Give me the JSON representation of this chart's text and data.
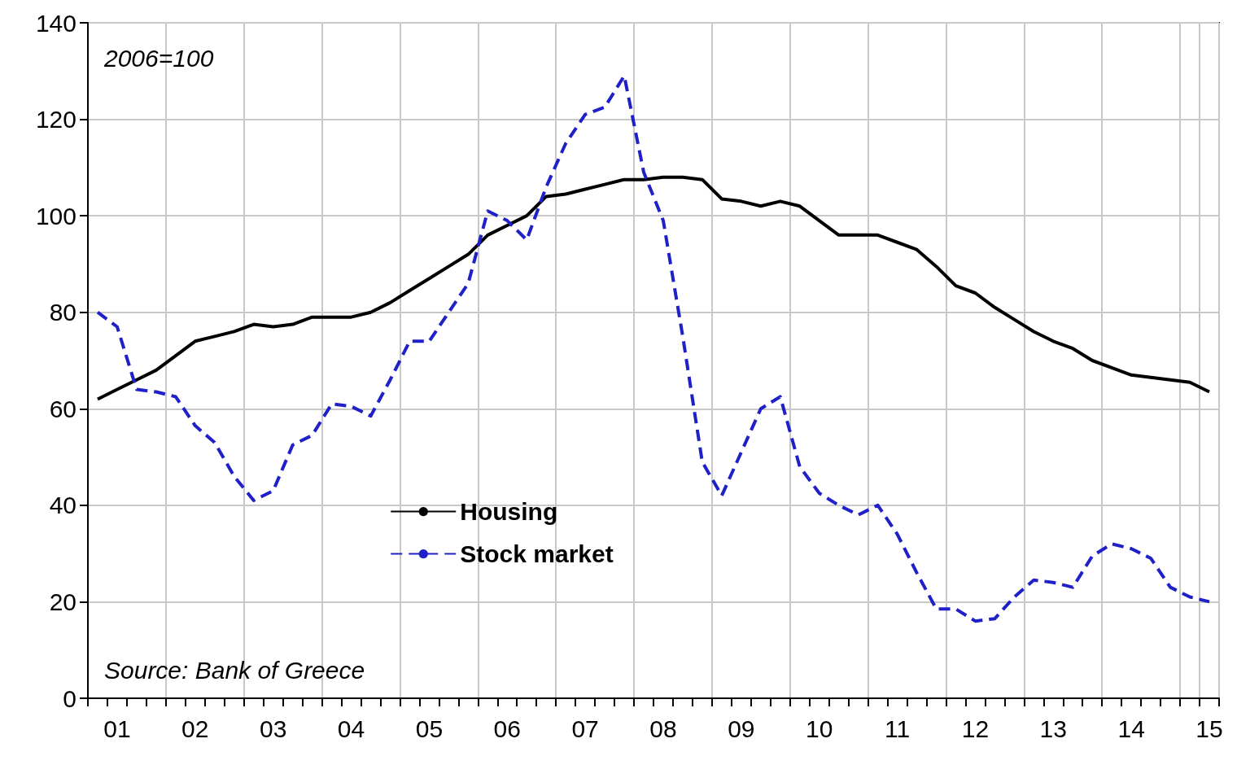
{
  "chart_data": {
    "type": "line",
    "categories": [
      null,
      "01",
      null,
      null,
      null,
      "02",
      null,
      null,
      null,
      "03",
      null,
      null,
      null,
      "04",
      null,
      null,
      null,
      "05",
      null,
      null,
      null,
      "06",
      null,
      null,
      null,
      "07",
      null,
      null,
      null,
      "08",
      null,
      null,
      null,
      "09",
      null,
      null,
      null,
      "10",
      null,
      null,
      null,
      "11",
      null,
      null,
      null,
      "12",
      null,
      null,
      null,
      "13",
      null,
      null,
      null,
      "14",
      null,
      null,
      null,
      "15"
    ],
    "series": [
      {
        "name": "Housing",
        "color": "#000000",
        "line_style": "solid",
        "values": [
          62,
          64,
          66,
          68,
          71,
          74,
          75,
          76,
          77.5,
          77,
          77.5,
          79,
          79,
          79,
          80,
          82,
          84.5,
          87,
          89.5,
          92,
          96,
          98,
          100,
          104,
          104.5,
          105.5,
          106.5,
          107.5,
          107.5,
          108,
          108,
          107.5,
          103.5,
          103,
          102,
          103,
          102,
          99,
          96,
          96,
          96,
          94.5,
          93,
          89.5,
          85.5,
          84,
          81,
          78.5,
          76,
          74,
          72.5,
          70,
          68.5,
          67,
          66.5,
          66,
          65.5,
          63.5
        ]
      },
      {
        "name": "Stock market",
        "color": "#2020c8",
        "line_style": "dashed",
        "values": [
          80,
          77,
          64,
          63.5,
          62.5,
          56.5,
          53,
          46,
          41,
          43,
          52.5,
          54.5,
          61,
          60.5,
          58.5,
          66,
          74,
          74,
          80,
          86,
          101,
          99,
          95,
          106,
          115,
          121,
          122.5,
          129,
          109,
          99,
          75,
          49,
          42,
          51,
          60,
          62.5,
          48,
          42.5,
          40,
          38,
          40,
          34,
          26,
          18.5,
          18.5,
          16,
          16.5,
          21,
          24.5,
          24,
          23,
          29.5,
          32,
          31,
          29,
          23,
          21,
          20
        ]
      }
    ],
    "ylim": [
      0,
      140
    ],
    "yticks": [
      0,
      20,
      40,
      60,
      80,
      100,
      120,
      140
    ],
    "grid": true,
    "legend": "bottom left",
    "marker": "none",
    "annotations": [
      "2006=100",
      "Source: Bank of Greece"
    ]
  }
}
